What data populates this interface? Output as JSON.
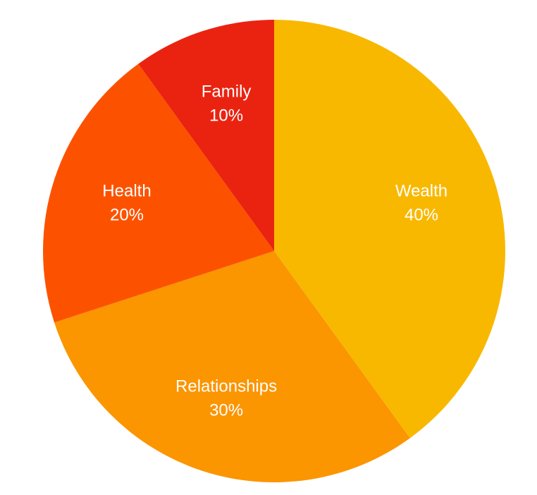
{
  "chart_data": {
    "type": "pie",
    "categories": [
      "Wealth",
      "Relationships",
      "Health",
      "Family"
    ],
    "values": [
      40,
      30,
      20,
      10
    ],
    "value_labels": [
      "40%",
      "30%",
      "20%",
      "10%"
    ],
    "colors": [
      "#f8b800",
      "#fb9500",
      "#fc5200",
      "#ea2310"
    ]
  }
}
